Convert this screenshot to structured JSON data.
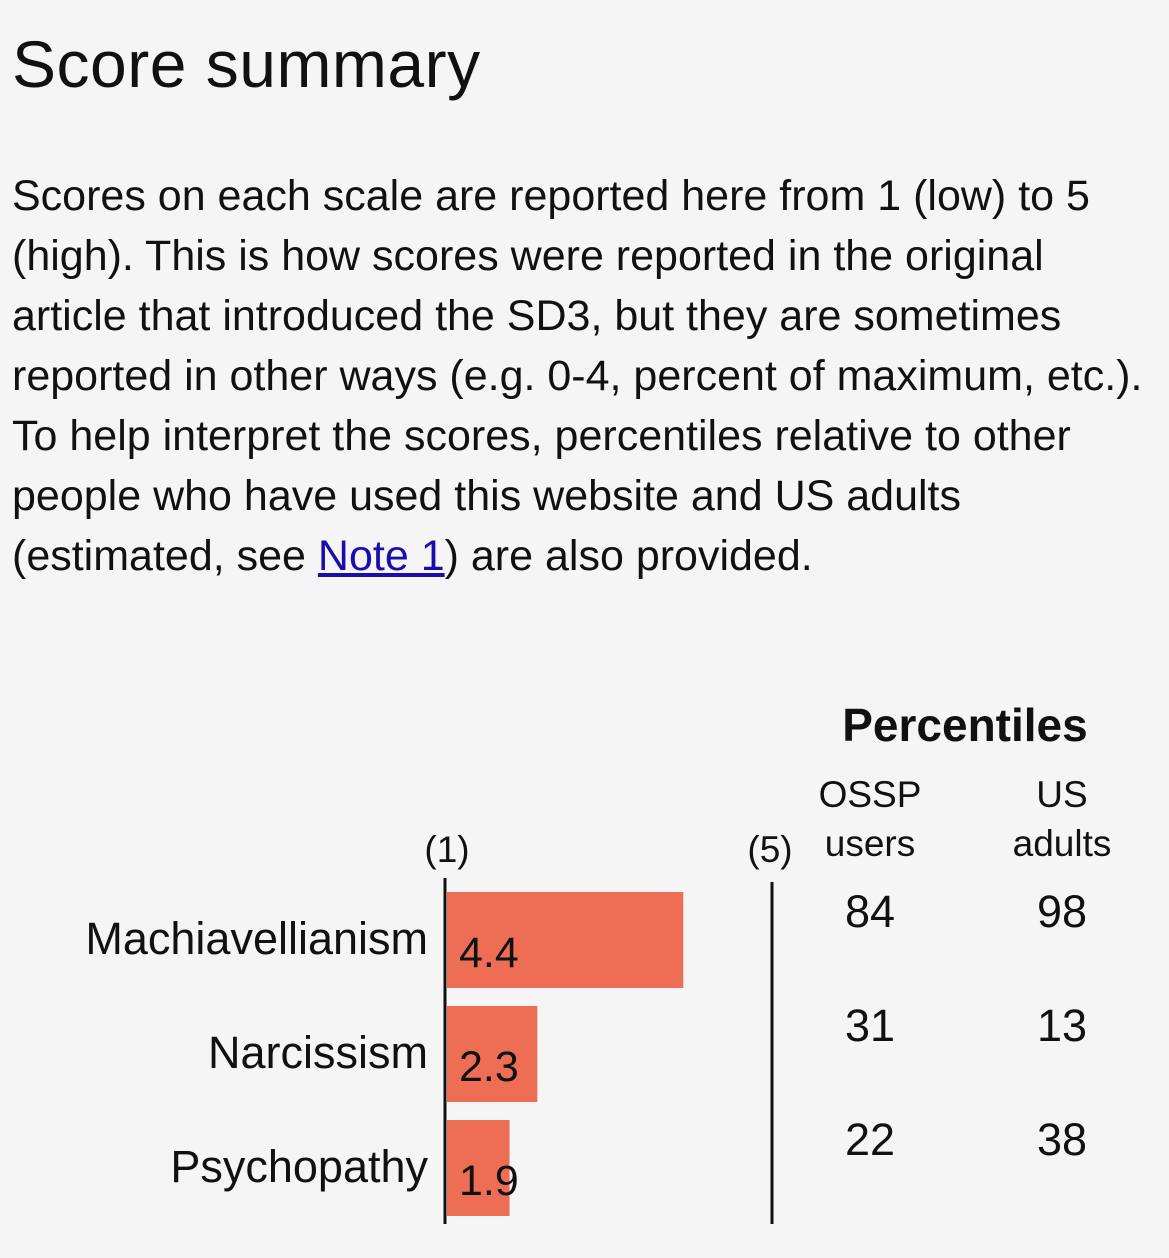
{
  "page": {
    "title": "Score summary",
    "intro_before_link": "Scores on each scale are reported here from 1 (low) to 5 (high). This is how scores were reported in the original article that introduced the SD3, but they are sometimes reported in other ways (e.g. 0-4, percent of maximum, etc.). To help interpret the scores, percentiles relative to other people who have used this website and US adults (estimated, see ",
    "intro_link": "Note 1",
    "intro_after_link": ") are also provided."
  },
  "colors": {
    "bar": "#ee6e55",
    "background": "#f5f5f5",
    "link": "#1a0dab"
  },
  "chart_data": {
    "type": "bar",
    "orientation": "horizontal",
    "categories": [
      "Machiavellianism",
      "Narcissism",
      "Psychopathy"
    ],
    "values": [
      4.4,
      2.3,
      1.9
    ],
    "value_labels": [
      "4.4",
      "2.3",
      "1.9"
    ],
    "xlim": [
      1,
      5
    ],
    "axis_min_label": "(1)",
    "axis_max_label": "(5)",
    "grid": false,
    "percentiles": {
      "title": "Percentiles",
      "columns": [
        {
          "label_line1": "OSSP",
          "label_line2": "users",
          "values": [
            "84",
            "31",
            "22"
          ]
        },
        {
          "label_line1": "US",
          "label_line2": "adults",
          "values": [
            "98",
            "13",
            "38"
          ]
        }
      ]
    }
  }
}
